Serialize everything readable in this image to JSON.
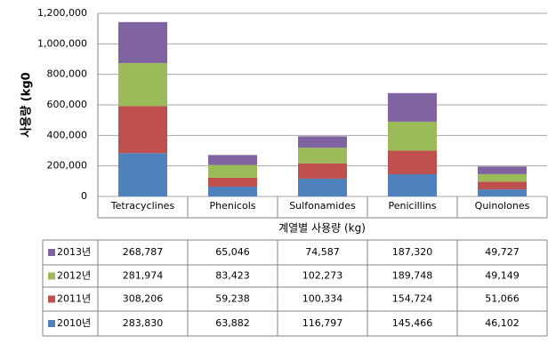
{
  "chart_data": {
    "type": "stacked_bar",
    "ylabel": "사용량 (kg0",
    "xlabel": "계열별 사용량 (kg)",
    "categories": [
      "Tetracyclines",
      "Phenicols",
      "Sulfonamides",
      "Penicillins",
      "Quinolones"
    ],
    "series": [
      {
        "name": "2010년",
        "color": "#4f81bd",
        "values": [
          283830,
          63882,
          116797,
          145466,
          46102
        ],
        "value_labels": [
          "283,830",
          "63,882",
          "116,797",
          "145,466",
          "46,102"
        ]
      },
      {
        "name": "2011년",
        "color": "#c0504d",
        "values": [
          308206,
          59238,
          100334,
          154724,
          51066
        ],
        "value_labels": [
          "308,206",
          "59,238",
          "100,334",
          "154,724",
          "51,066"
        ]
      },
      {
        "name": "2012년",
        "color": "#9bbb59",
        "values": [
          281974,
          83423,
          102273,
          189748,
          49149
        ],
        "value_labels": [
          "281,974",
          "83,423",
          "102,273",
          "189,748",
          "49,149"
        ]
      },
      {
        "name": "2013년",
        "color": "#8064a2",
        "values": [
          268787,
          65046,
          74587,
          187320,
          49727
        ],
        "value_labels": [
          "268,787",
          "65,046",
          "74,587",
          "187,320",
          "49,727"
        ]
      }
    ],
    "ylim": [
      0,
      1200000
    ],
    "yticks": [
      0,
      {
        "value": 200000,
        "label": "200,000"
      },
      {
        "value": 400000,
        "label": "400,000"
      },
      {
        "value": 600000,
        "label": "600,000"
      },
      {
        "value": 800000,
        "label": "800,000"
      },
      {
        "value": 1000000,
        "label": "1,000,000"
      },
      {
        "value": 1200000,
        "label": "1,200,000"
      }
    ],
    "grid": true
  }
}
